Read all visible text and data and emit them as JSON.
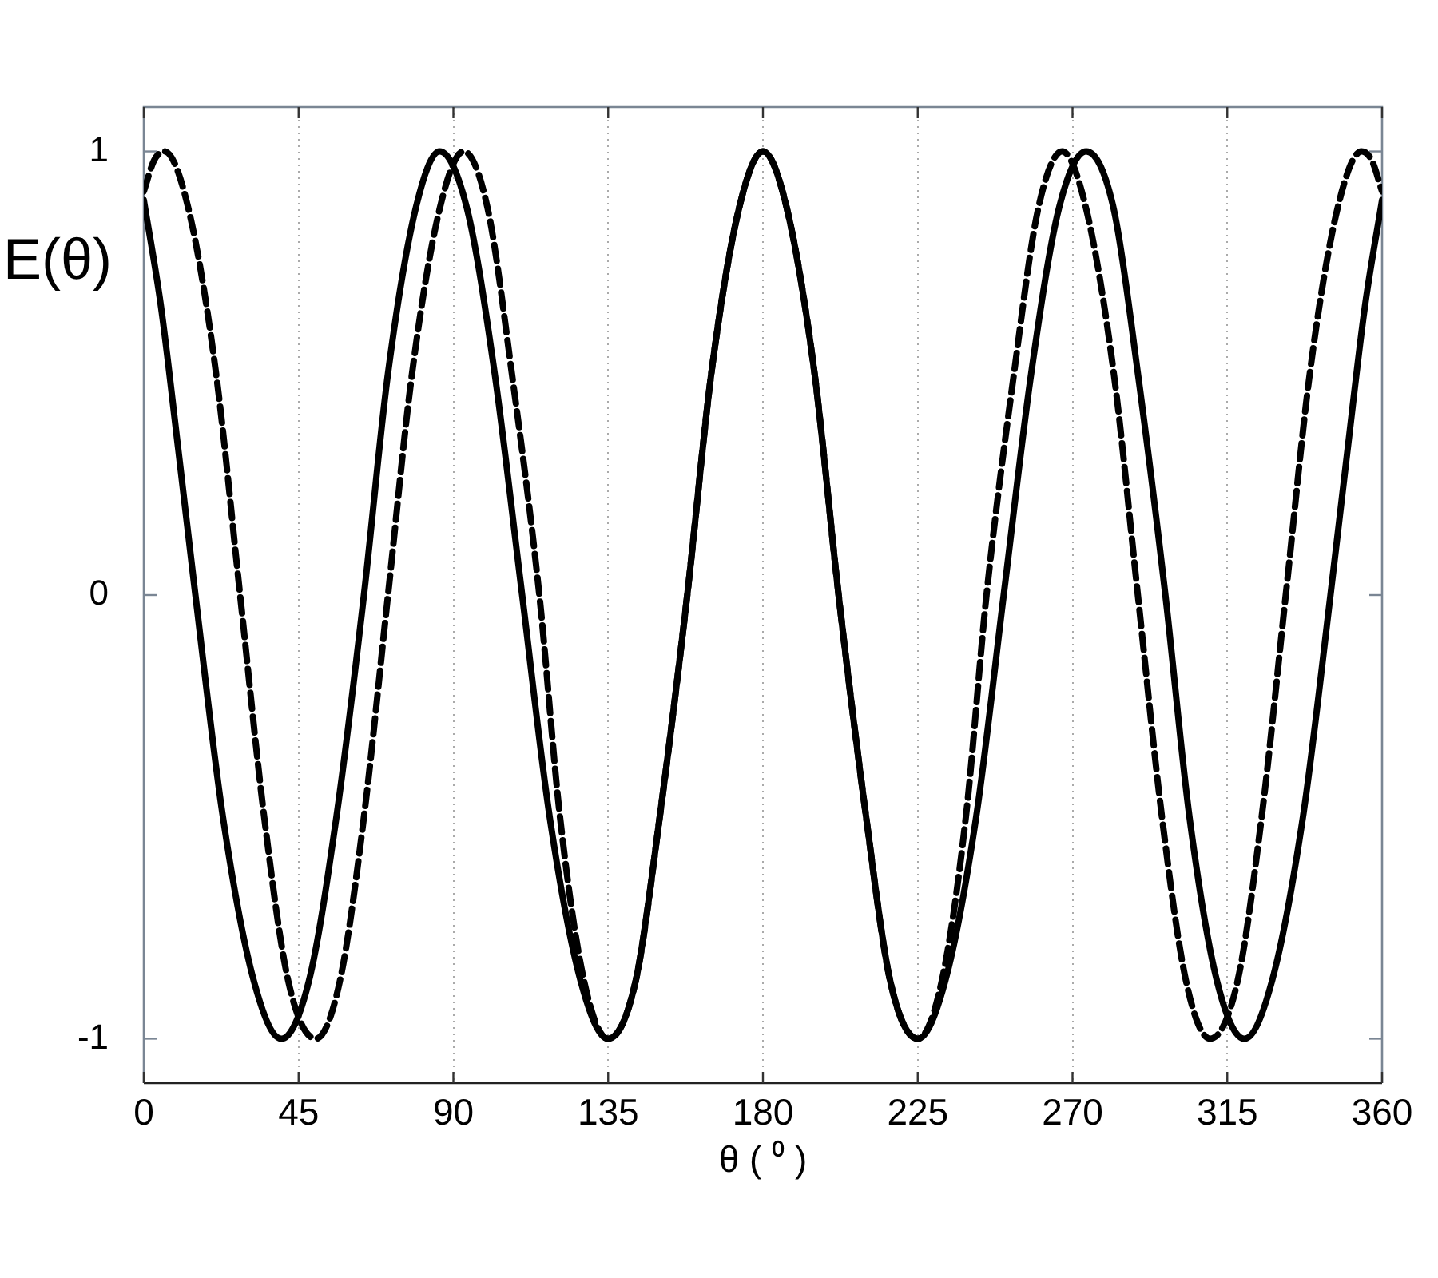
{
  "chart_data": {
    "type": "line",
    "xlabel": "θ ( ⁰ )",
    "ylabel": "E(θ)",
    "xlim": [
      0,
      360
    ],
    "ylim": [
      -1.1,
      1.1
    ],
    "xticks": [
      0,
      45,
      90,
      135,
      180,
      225,
      270,
      315,
      360
    ],
    "yticks": [
      -1,
      0,
      1
    ],
    "grid": "x",
    "marker": "none",
    "series": [
      {
        "color": "#000000",
        "line_style": "solid",
        "x": [
          0,
          5,
          10,
          15,
          23,
          32,
          40,
          48,
          56,
          64,
          71,
          79,
          86,
          94,
          102,
          110,
          118,
          127,
          135,
          143,
          150,
          158,
          165,
          173,
          180,
          187,
          195,
          202,
          210,
          217,
          225,
          233,
          242,
          250,
          258,
          266,
          274,
          282,
          289,
          297,
          304,
          312,
          320,
          328,
          337,
          345,
          350,
          355,
          360
        ],
        "values": [
          0.89,
          0.65,
          0.33,
          0,
          -0.5,
          -0.87,
          -1,
          -0.87,
          -0.5,
          0,
          0.5,
          0.87,
          1,
          0.87,
          0.5,
          0,
          -0.5,
          -0.87,
          -1,
          -0.87,
          -0.5,
          0,
          0.5,
          0.87,
          1,
          0.87,
          0.5,
          0,
          -0.5,
          -0.87,
          -1,
          -0.87,
          -0.5,
          0,
          0.5,
          0.87,
          1,
          0.87,
          0.5,
          0,
          -0.5,
          -0.87,
          -1,
          -0.87,
          -0.5,
          0,
          0.33,
          0.65,
          0.89
        ]
      },
      {
        "color": "#000000",
        "line_style": "dashed",
        "x": [
          0,
          3,
          6,
          13,
          21,
          28,
          35,
          42,
          50,
          57,
          64,
          71,
          78,
          86,
          93,
          100,
          107,
          115,
          121,
          128,
          135,
          143,
          150,
          158,
          165,
          173,
          180,
          187,
          195,
          202,
          210,
          217,
          225,
          232,
          239,
          245,
          253,
          260,
          267,
          274,
          282,
          289,
          296,
          303,
          310,
          318,
          325,
          332,
          339,
          347,
          354,
          357,
          360
        ],
        "values": [
          0.91,
          0.98,
          1,
          0.87,
          0.5,
          0,
          -0.5,
          -0.87,
          -1,
          -0.87,
          -0.5,
          0,
          0.5,
          0.87,
          1,
          0.87,
          0.5,
          0,
          -0.5,
          -0.87,
          -1,
          -0.87,
          -0.5,
          0,
          0.5,
          0.87,
          1,
          0.87,
          0.5,
          0,
          -0.5,
          -0.87,
          -1,
          -0.87,
          -0.5,
          0,
          0.5,
          0.87,
          1,
          0.87,
          0.5,
          0,
          -0.5,
          -0.87,
          -1,
          -0.87,
          -0.5,
          0,
          0.5,
          0.87,
          1,
          0.98,
          0.91
        ]
      }
    ]
  }
}
